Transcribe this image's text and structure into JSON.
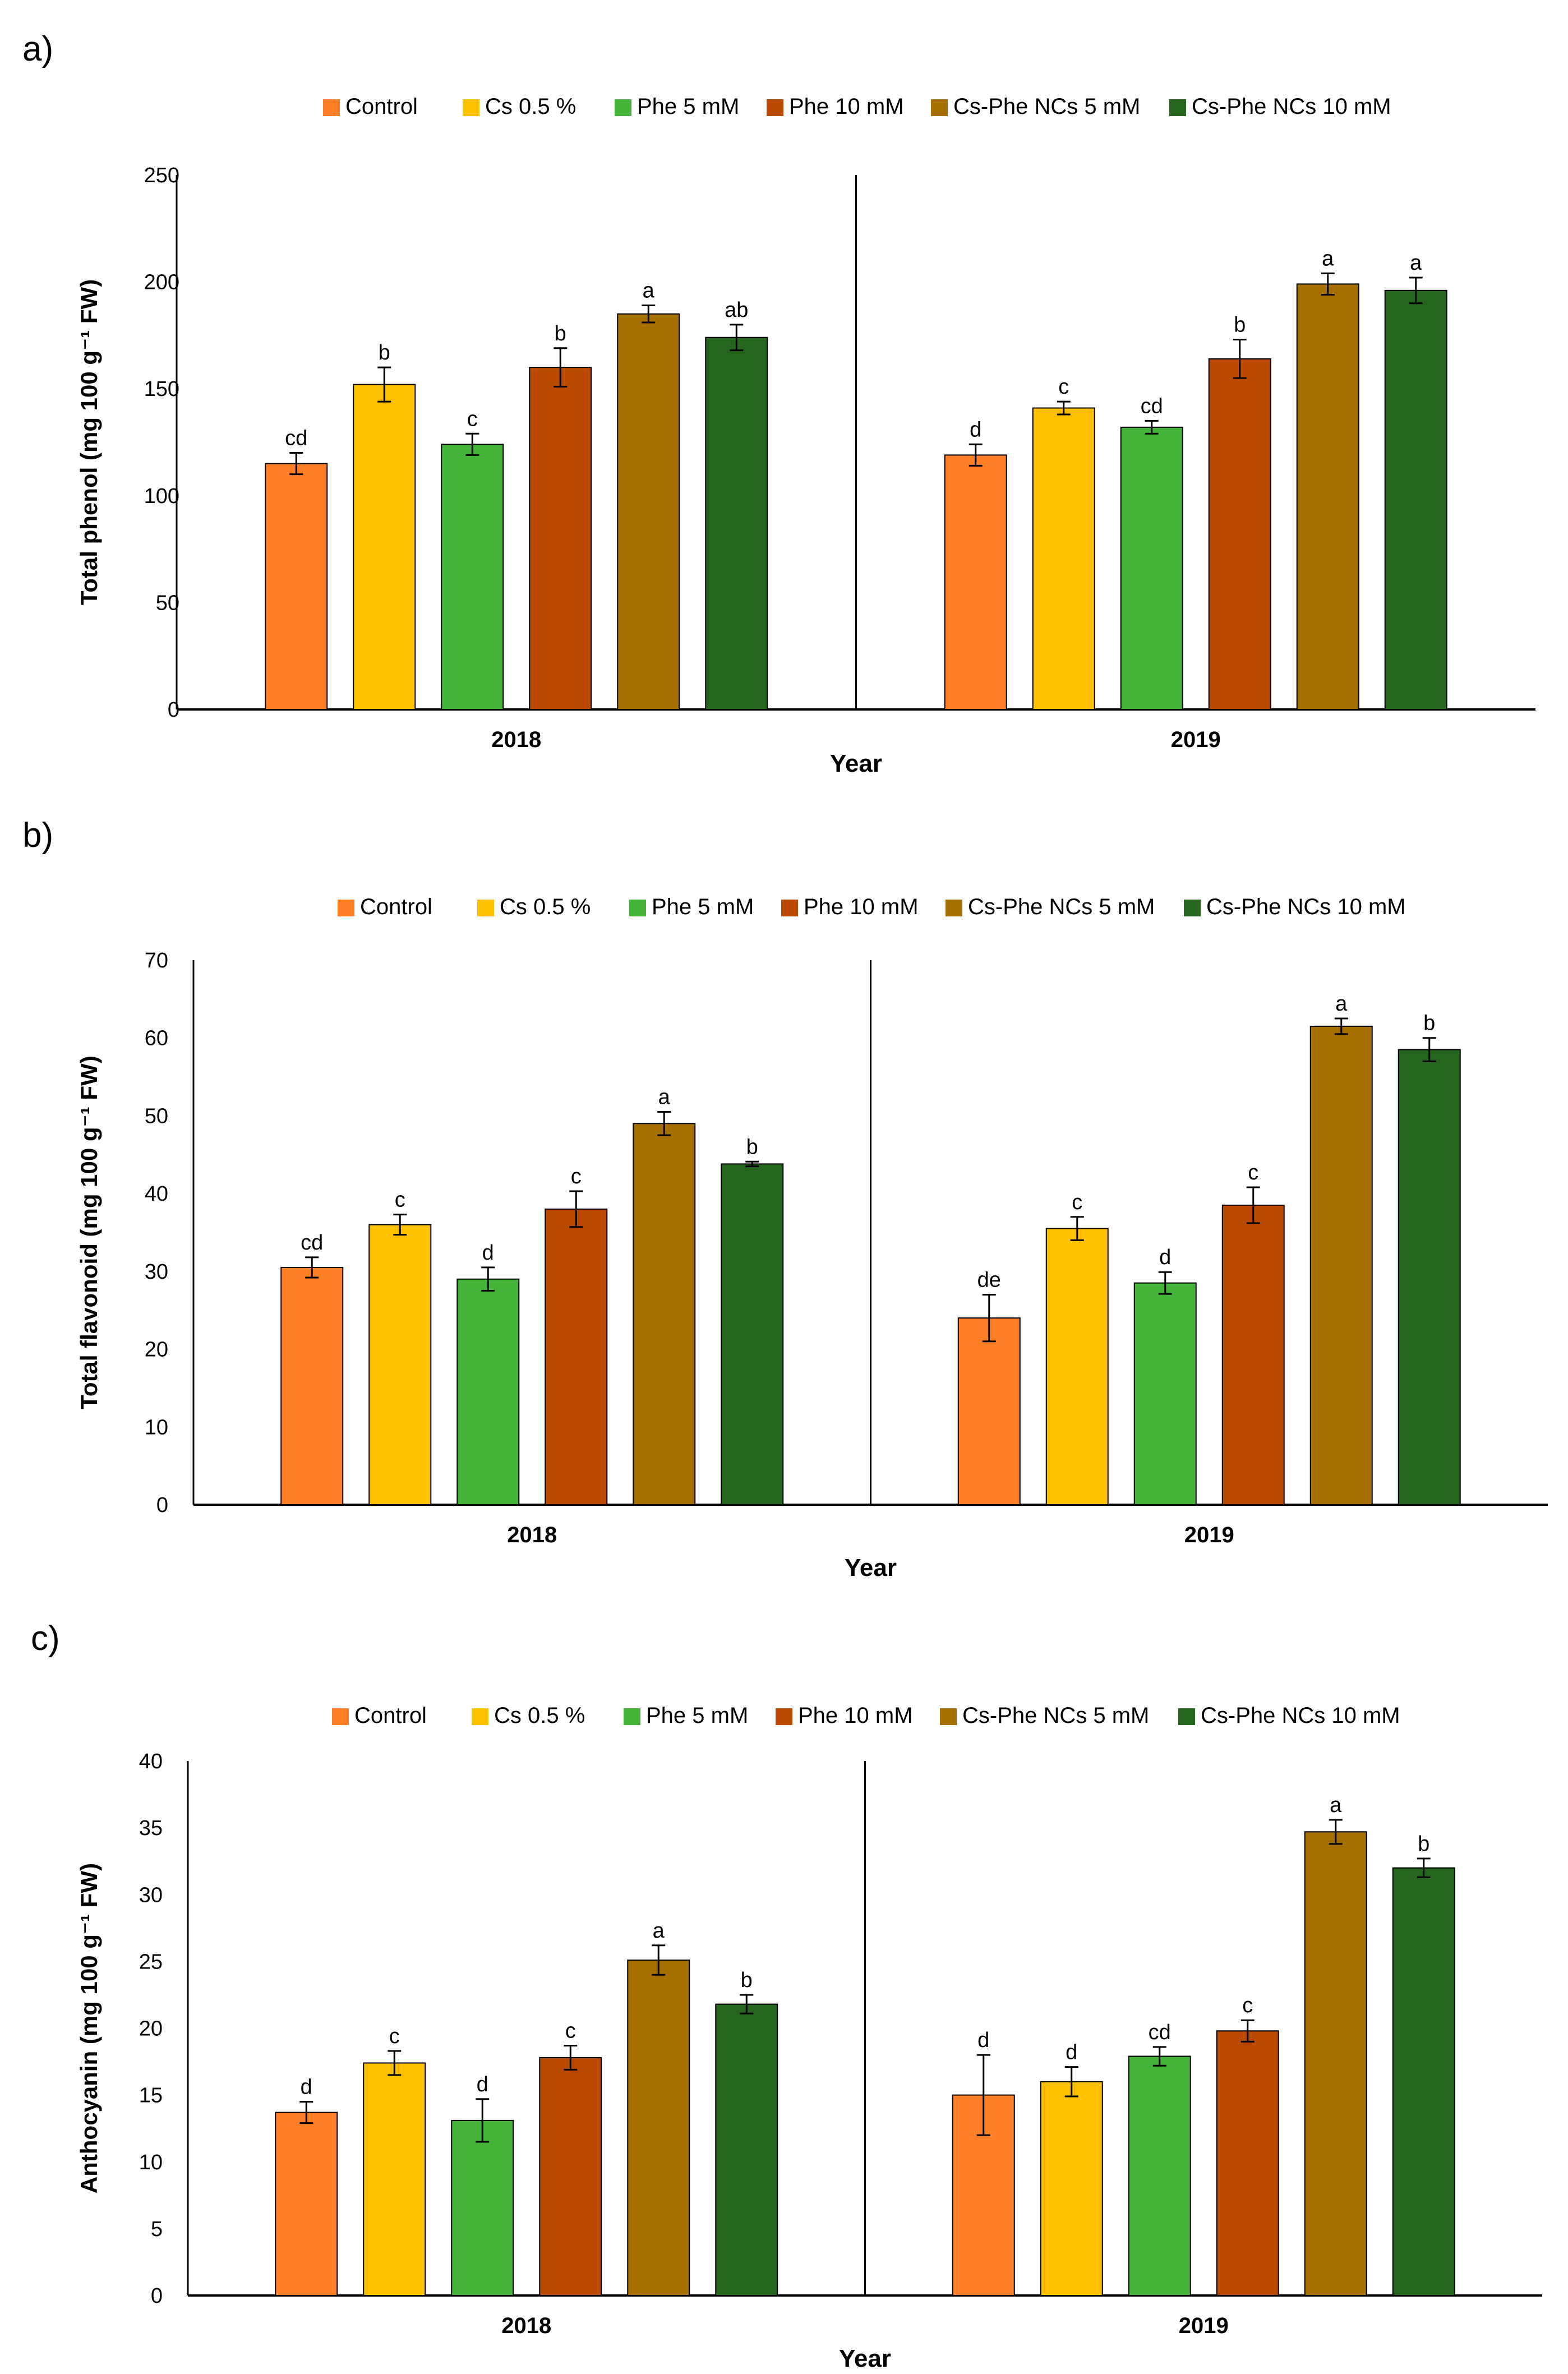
{
  "legend_labels": [
    "Control",
    "Cs 0.5 %",
    "Phe 5 mM",
    "Phe 10 mM",
    "Cs-Phe NCs 5 mM",
    "Cs-Phe NCs 10 mM"
  ],
  "series_colors": [
    "#FF7F27",
    "#FFC000",
    "#44B33A",
    "#B94A00",
    "#A57000",
    "#25651E"
  ],
  "chart_data": [
    {
      "type": "bar",
      "panel_label": "a)",
      "title": "",
      "xlabel": "Year",
      "ylabel": "Total phenol (mg 100 g⁻¹ FW)",
      "categories": [
        "2018",
        "2019"
      ],
      "ylim": [
        0,
        250
      ],
      "yticks": [
        0,
        50,
        100,
        150,
        200,
        250
      ],
      "grid": false,
      "legend_position": "top",
      "series": [
        {
          "name": "Control",
          "values": [
            115,
            119
          ],
          "errors": [
            5,
            5
          ],
          "letters": [
            "cd",
            "d"
          ]
        },
        {
          "name": "Cs 0.5 %",
          "values": [
            152,
            141
          ],
          "errors": [
            8,
            3
          ],
          "letters": [
            "b",
            "c"
          ]
        },
        {
          "name": "Phe 5 mM",
          "values": [
            124,
            132
          ],
          "errors": [
            5,
            3
          ],
          "letters": [
            "c",
            "cd"
          ]
        },
        {
          "name": "Phe 10 mM",
          "values": [
            160,
            164
          ],
          "errors": [
            9,
            9
          ],
          "letters": [
            "b",
            "b"
          ]
        },
        {
          "name": "Cs-Phe NCs 5 mM",
          "values": [
            185,
            199
          ],
          "errors": [
            4,
            5
          ],
          "letters": [
            "a",
            "a"
          ]
        },
        {
          "name": "Cs-Phe NCs 10 mM",
          "values": [
            174,
            196
          ],
          "errors": [
            6,
            6
          ],
          "letters": [
            "ab",
            "a"
          ]
        }
      ]
    },
    {
      "type": "bar",
      "panel_label": "b)",
      "title": "",
      "xlabel": "Year",
      "ylabel": "Total flavonoid (mg 100 g⁻¹ FW)",
      "categories": [
        "2018",
        "2019"
      ],
      "ylim": [
        0,
        70
      ],
      "yticks": [
        0,
        10,
        20,
        30,
        40,
        50,
        60,
        70
      ],
      "grid": false,
      "legend_position": "top",
      "series": [
        {
          "name": "Control",
          "values": [
            30.5,
            24
          ],
          "errors": [
            1.3,
            3
          ],
          "letters": [
            "cd",
            "de"
          ]
        },
        {
          "name": "Cs 0.5 %",
          "values": [
            36,
            35.5
          ],
          "errors": [
            1.3,
            1.5
          ],
          "letters": [
            "c",
            "c"
          ]
        },
        {
          "name": "Phe 5 mM",
          "values": [
            29,
            28.5
          ],
          "errors": [
            1.5,
            1.4
          ],
          "letters": [
            "d",
            "d"
          ]
        },
        {
          "name": "Phe 10 mM",
          "values": [
            38,
            38.5
          ],
          "errors": [
            2.3,
            2.3
          ],
          "letters": [
            "c",
            "c"
          ]
        },
        {
          "name": "Cs-Phe NCs 5 mM",
          "values": [
            49,
            61.5
          ],
          "errors": [
            1.5,
            1
          ],
          "letters": [
            "a",
            "a"
          ]
        },
        {
          "name": "Cs-Phe NCs 10 mM",
          "values": [
            43.8,
            58.5
          ],
          "errors": [
            0.3,
            1.5
          ],
          "letters": [
            "b",
            "b"
          ]
        }
      ]
    },
    {
      "type": "bar",
      "panel_label": "c)",
      "title": "",
      "xlabel": "Year",
      "ylabel": "Anthocyanin (mg 100 g⁻¹ FW)",
      "categories": [
        "2018",
        "2019"
      ],
      "ylim": [
        0,
        40
      ],
      "yticks": [
        0,
        5,
        10,
        15,
        20,
        25,
        30,
        35,
        40
      ],
      "grid": false,
      "legend_position": "top",
      "series": [
        {
          "name": "Control",
          "values": [
            13.7,
            15
          ],
          "errors": [
            0.8,
            3
          ],
          "letters": [
            "d",
            "d"
          ]
        },
        {
          "name": "Cs 0.5 %",
          "values": [
            17.4,
            16
          ],
          "errors": [
            0.9,
            1.1
          ],
          "letters": [
            "c",
            "d"
          ]
        },
        {
          "name": "Phe 5 mM",
          "values": [
            13.1,
            17.9
          ],
          "errors": [
            1.6,
            0.7
          ],
          "letters": [
            "d",
            "cd"
          ]
        },
        {
          "name": "Phe 10 mM",
          "values": [
            17.8,
            19.8
          ],
          "errors": [
            0.9,
            0.8
          ],
          "letters": [
            "c",
            "c"
          ]
        },
        {
          "name": "Cs-Phe NCs 5 mM",
          "values": [
            25.1,
            34.7
          ],
          "errors": [
            1.1,
            0.9
          ],
          "letters": [
            "a",
            "a"
          ]
        },
        {
          "name": "Cs-Phe NCs 10 mM",
          "values": [
            21.8,
            32
          ],
          "errors": [
            0.7,
            0.7
          ],
          "letters": [
            "b",
            "b"
          ]
        }
      ]
    }
  ]
}
